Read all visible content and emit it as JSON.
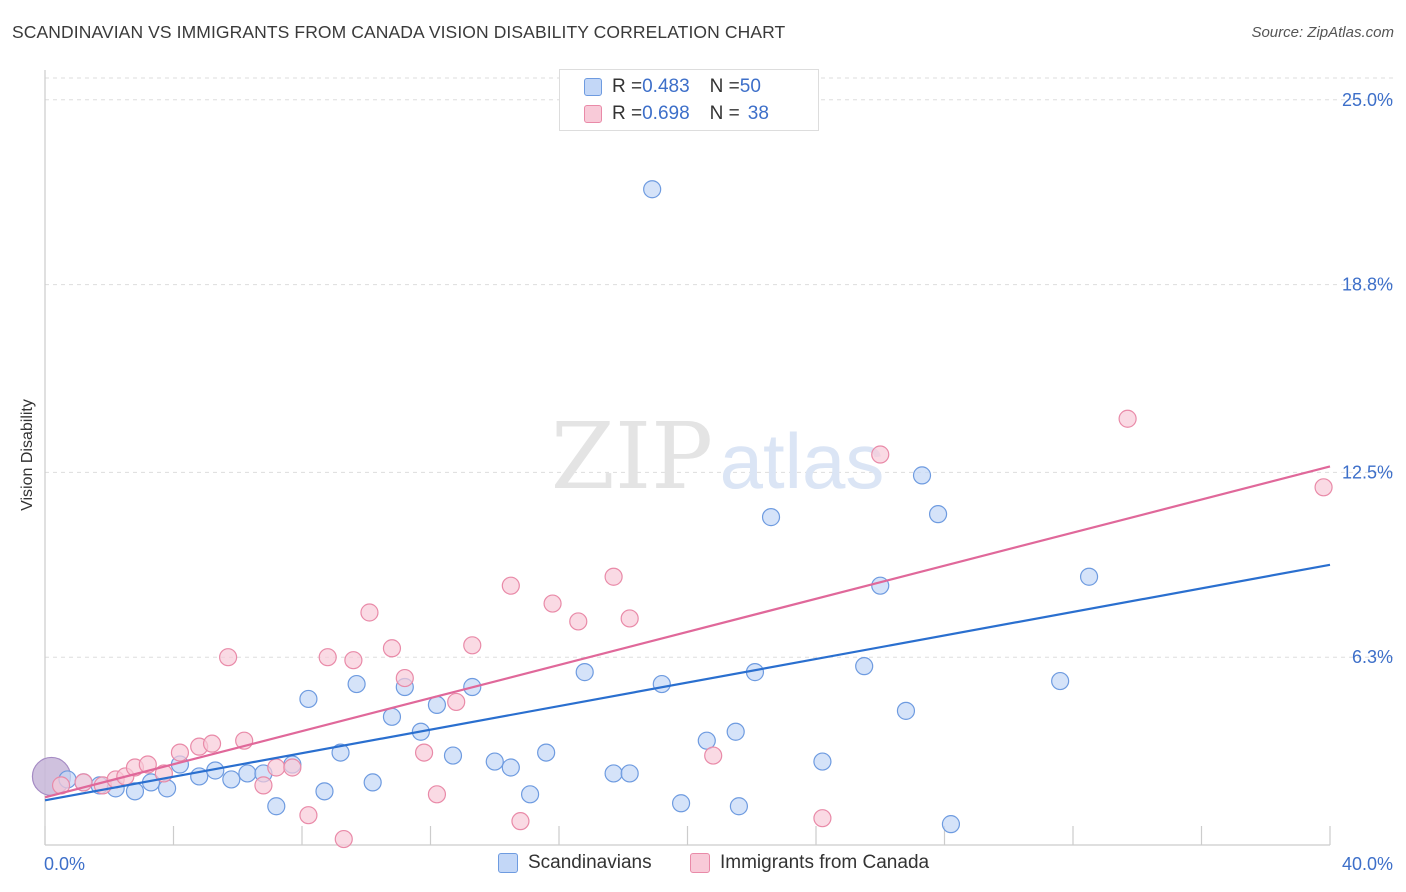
{
  "title": "SCANDINAVIAN VS IMMIGRANTS FROM CANADA VISION DISABILITY CORRELATION CHART",
  "source": "Source: ZipAtlas.com",
  "watermark": {
    "zip": "ZIP",
    "atlas": "atlas"
  },
  "legend": {
    "rows": [
      {
        "r_label": "R = ",
        "r_value": "0.483",
        "n_label": "N = ",
        "n_value": "50"
      },
      {
        "r_label": "R = ",
        "r_value": "0.698",
        "n_label": "N = ",
        "n_value": "38"
      }
    ]
  },
  "colors": {
    "blue_fill": "#c3d7f7",
    "blue_stroke": "#6e9be0",
    "blue_line": "#2a6fcf",
    "pink_fill": "#f8cad8",
    "pink_stroke": "#e98aa8",
    "pink_line": "#e0689a",
    "axis_text": "#3d6fc9",
    "grid": "#dddddd"
  },
  "chart_data": {
    "type": "scatter",
    "title": "SCANDINAVIAN VS IMMIGRANTS FROM CANADA VISION DISABILITY CORRELATION CHART",
    "xlabel": "",
    "ylabel": "Vision Disability",
    "xlim": [
      0,
      40
    ],
    "ylim": [
      0,
      26
    ],
    "x_tick_labels": [
      {
        "value": 0,
        "label": "0.0%"
      },
      {
        "value": 40,
        "label": "40.0%"
      }
    ],
    "y_tick_labels": [
      {
        "value": 25.0,
        "label": "25.0%"
      },
      {
        "value": 18.8,
        "label": "18.8%"
      },
      {
        "value": 12.5,
        "label": "12.5%"
      },
      {
        "value": 6.3,
        "label": "6.3%"
      }
    ],
    "grid": true,
    "legend_position": "top-center",
    "series": [
      {
        "name": "Scandinavians",
        "color": "#6e9be0",
        "r": 0.483,
        "n": 50,
        "trend": {
          "x0": 0,
          "y0": 1.5,
          "x1": 40,
          "y1": 9.4
        },
        "points": [
          [
            0.7,
            2.2
          ],
          [
            1.2,
            2.1
          ],
          [
            1.7,
            2.0
          ],
          [
            2.2,
            1.9
          ],
          [
            2.8,
            1.8
          ],
          [
            3.3,
            2.1
          ],
          [
            3.8,
            1.9
          ],
          [
            4.2,
            2.7
          ],
          [
            4.8,
            2.3
          ],
          [
            5.3,
            2.5
          ],
          [
            5.8,
            2.2
          ],
          [
            6.3,
            2.4
          ],
          [
            6.8,
            2.4
          ],
          [
            7.2,
            1.3
          ],
          [
            7.7,
            2.7
          ],
          [
            8.2,
            4.9
          ],
          [
            8.7,
            1.8
          ],
          [
            9.2,
            3.1
          ],
          [
            9.7,
            5.4
          ],
          [
            10.2,
            2.1
          ],
          [
            10.8,
            4.3
          ],
          [
            11.2,
            5.3
          ],
          [
            11.7,
            3.8
          ],
          [
            12.2,
            4.7
          ],
          [
            12.7,
            3.0
          ],
          [
            13.3,
            5.3
          ],
          [
            14.0,
            2.8
          ],
          [
            14.5,
            2.6
          ],
          [
            15.1,
            1.7
          ],
          [
            15.6,
            3.1
          ],
          [
            16.8,
            5.8
          ],
          [
            17.7,
            2.4
          ],
          [
            18.2,
            2.4
          ],
          [
            19.2,
            5.4
          ],
          [
            18.9,
            22.0
          ],
          [
            19.8,
            1.4
          ],
          [
            20.6,
            3.5
          ],
          [
            21.5,
            3.8
          ],
          [
            21.6,
            1.3
          ],
          [
            22.1,
            5.8
          ],
          [
            22.6,
            11.0
          ],
          [
            24.2,
            2.8
          ],
          [
            25.5,
            6.0
          ],
          [
            26.0,
            8.7
          ],
          [
            26.8,
            4.5
          ],
          [
            27.3,
            12.4
          ],
          [
            27.8,
            11.1
          ],
          [
            28.2,
            0.7
          ],
          [
            31.6,
            5.5
          ],
          [
            32.5,
            9.0
          ]
        ]
      },
      {
        "name": "Immigrants from Canada",
        "color": "#e98aa8",
        "r": 0.698,
        "n": 38,
        "trend": {
          "x0": 0,
          "y0": 1.6,
          "x1": 40,
          "y1": 12.7
        },
        "points": [
          [
            0.5,
            2.0
          ],
          [
            1.2,
            2.1
          ],
          [
            1.8,
            2.0
          ],
          [
            2.2,
            2.2
          ],
          [
            2.5,
            2.3
          ],
          [
            2.8,
            2.6
          ],
          [
            3.2,
            2.7
          ],
          [
            3.7,
            2.4
          ],
          [
            4.2,
            3.1
          ],
          [
            4.8,
            3.3
          ],
          [
            5.2,
            3.4
          ],
          [
            5.7,
            6.3
          ],
          [
            6.2,
            3.5
          ],
          [
            6.8,
            2.0
          ],
          [
            7.2,
            2.6
          ],
          [
            7.7,
            2.6
          ],
          [
            8.2,
            1.0
          ],
          [
            8.8,
            6.3
          ],
          [
            9.3,
            0.2
          ],
          [
            9.6,
            6.2
          ],
          [
            10.1,
            7.8
          ],
          [
            10.8,
            6.6
          ],
          [
            11.2,
            5.6
          ],
          [
            11.8,
            3.1
          ],
          [
            12.2,
            1.7
          ],
          [
            12.8,
            4.8
          ],
          [
            13.3,
            6.7
          ],
          [
            14.5,
            8.7
          ],
          [
            14.8,
            0.8
          ],
          [
            15.8,
            8.1
          ],
          [
            16.6,
            7.5
          ],
          [
            17.7,
            9.0
          ],
          [
            18.2,
            7.6
          ],
          [
            20.8,
            3.0
          ],
          [
            24.2,
            0.9
          ],
          [
            26.0,
            13.1
          ],
          [
            33.7,
            14.3
          ],
          [
            39.8,
            12.0
          ]
        ]
      }
    ]
  },
  "bottom_legend": {
    "items": [
      {
        "label": "Scandinavians"
      },
      {
        "label": "Immigrants from Canada"
      }
    ]
  }
}
